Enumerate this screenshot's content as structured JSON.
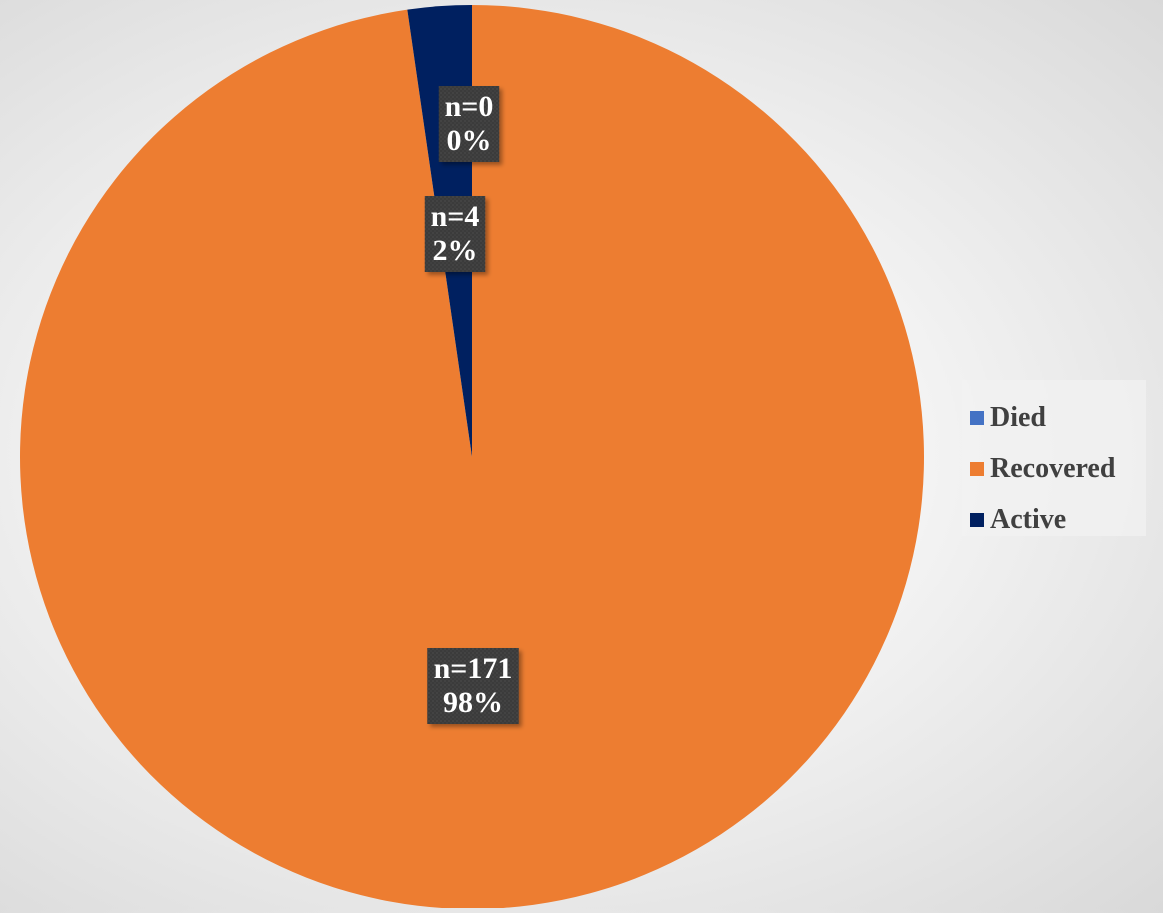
{
  "chart_data": {
    "type": "pie",
    "slices": [
      {
        "name": "Died",
        "value": 0,
        "percent": "0%",
        "count_label": "n=0",
        "color": "#4472C4"
      },
      {
        "name": "Recovered",
        "value": 171,
        "percent": "98%",
        "count_label": "n=171",
        "color": "#ED7D31"
      },
      {
        "name": "Active",
        "value": 4,
        "percent": "2%",
        "count_label": "n=4",
        "color": "#002060"
      }
    ],
    "legend": {
      "position": "right",
      "items": [
        "Died",
        "Recovered",
        "Active"
      ]
    },
    "title": "",
    "label_box_color": "#3a3a3a"
  }
}
